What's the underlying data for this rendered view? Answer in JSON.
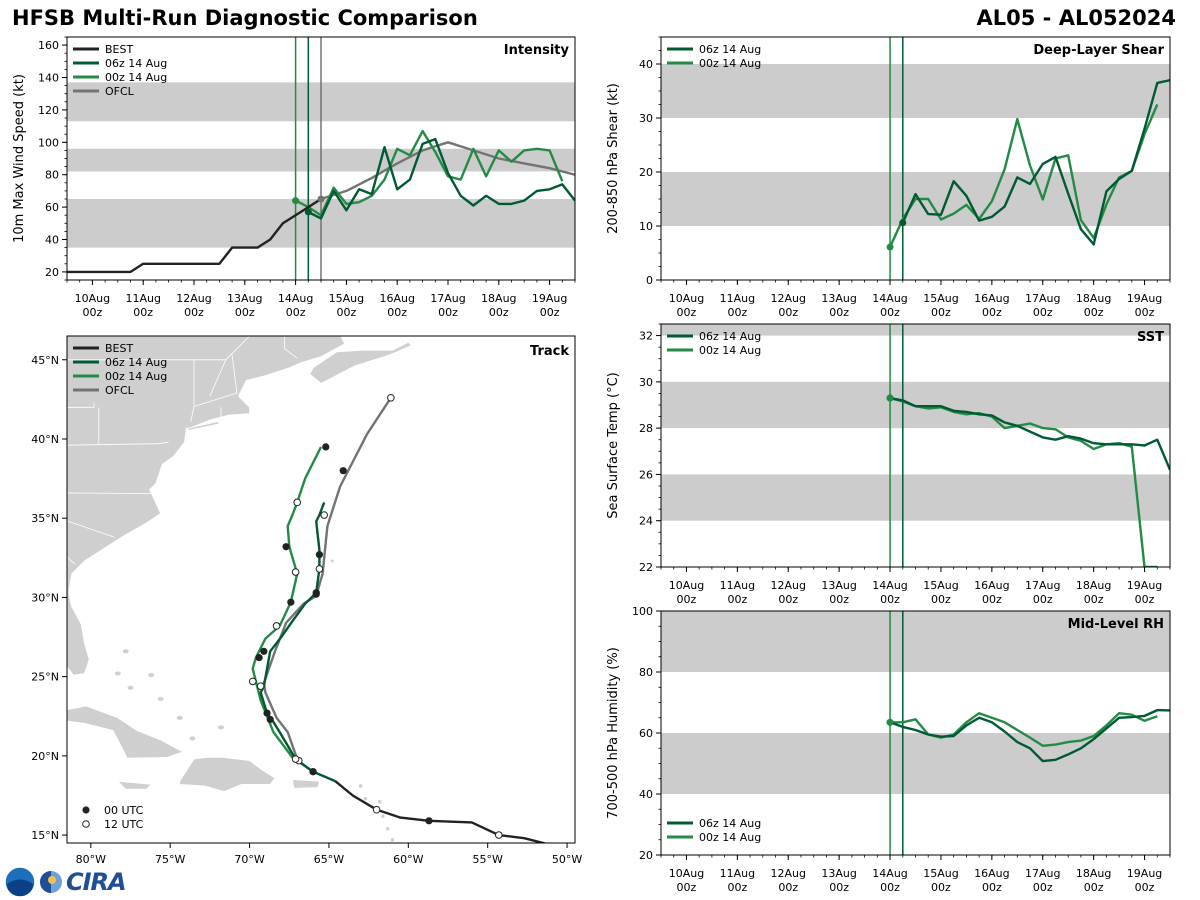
{
  "header": {
    "title": "HFSB Multi-Run Diagnostic Comparison",
    "storm": "AL05 - AL052024"
  },
  "colors": {
    "best": "#222222",
    "run06": "#005a32",
    "run00": "#238b45",
    "ofcl": "#737373",
    "band": "#cccccc",
    "land": "#cfcfcf"
  },
  "logo": {
    "text": "CIRA"
  },
  "time_ticks": [
    {
      "line1": "10Aug",
      "line2": "00z"
    },
    {
      "line1": "11Aug",
      "line2": "00z"
    },
    {
      "line1": "12Aug",
      "line2": "00z"
    },
    {
      "line1": "13Aug",
      "line2": "00z"
    },
    {
      "line1": "14Aug",
      "line2": "00z"
    },
    {
      "line1": "15Aug",
      "line2": "00z"
    },
    {
      "line1": "16Aug",
      "line2": "00z"
    },
    {
      "line1": "17Aug",
      "line2": "00z"
    },
    {
      "line1": "18Aug",
      "line2": "00z"
    },
    {
      "line1": "19Aug",
      "line2": "00z"
    }
  ],
  "chart_data": [
    {
      "id": "intensity",
      "type": "line",
      "title": "Intensity",
      "xlabel": "",
      "ylabel": "10m Max Wind Speed (kt)",
      "xlim": [
        -0.5,
        9.5
      ],
      "ylim": [
        15,
        165
      ],
      "yticks": [
        "20",
        "40",
        "60",
        "80",
        "100",
        "120",
        "140",
        "160"
      ],
      "bands": [
        [
          35,
          65
        ],
        [
          82,
          96
        ],
        [
          113,
          137
        ]
      ],
      "vlines": [
        {
          "x": 4.0,
          "series": "00z 14 Aug"
        },
        {
          "x": 4.25,
          "series": "06z 14 Aug"
        },
        {
          "x": 4.5,
          "series": "OFCL"
        }
      ],
      "legend": [
        "BEST",
        "06z 14 Aug",
        "00z 14 Aug",
        "OFCL"
      ],
      "legend_loc": "top-left",
      "series": [
        {
          "name": "BEST",
          "x": [
            -0.5,
            0,
            0.25,
            0.5,
            0.75,
            1.0,
            1.25,
            1.5,
            1.75,
            2.0,
            2.25,
            2.5,
            2.75,
            3.0,
            3.25,
            3.5,
            3.75,
            4.0,
            4.25,
            4.5
          ],
          "y": [
            20,
            20,
            20,
            20,
            20,
            25,
            25,
            25,
            25,
            25,
            25,
            25,
            35,
            35,
            35,
            40,
            50,
            55,
            60,
            65
          ]
        },
        {
          "name": "06z 14 Aug",
          "x": [
            4.25,
            4.5,
            4.75,
            5.0,
            5.25,
            5.5,
            5.75,
            6.0,
            6.25,
            6.5,
            6.75,
            7.0,
            7.25,
            7.5,
            7.75,
            8.0,
            8.25,
            8.5,
            8.75,
            9.0,
            9.25,
            9.5
          ],
          "y": [
            57,
            53,
            70,
            58,
            71,
            68,
            97,
            71,
            77,
            99,
            102,
            81,
            67,
            61,
            67,
            62,
            62,
            64,
            70,
            71,
            74,
            64
          ]
        },
        {
          "name": "00z 14 Aug",
          "x": [
            4.0,
            4.25,
            4.5,
            4.75,
            5.0,
            5.25,
            5.5,
            5.75,
            6.0,
            6.25,
            6.5,
            6.75,
            7.0,
            7.25,
            7.5,
            7.75,
            8.0,
            8.25,
            8.5,
            8.75,
            9.0,
            9.25
          ],
          "y": [
            64,
            60,
            55,
            72,
            62,
            63,
            67,
            77,
            96,
            92,
            107,
            94,
            79,
            77,
            96,
            79,
            95,
            88,
            95,
            96,
            95,
            76
          ]
        },
        {
          "name": "OFCL",
          "x": [
            4.5,
            5.0,
            5.5,
            6.0,
            6.5,
            7.0,
            7.5,
            8.0,
            8.5,
            9.0,
            9.5
          ],
          "y": [
            65,
            70,
            78,
            87,
            95,
            100,
            95,
            90,
            87,
            84,
            80
          ]
        }
      ]
    },
    {
      "id": "shear",
      "type": "line",
      "title": "Deep-Layer Shear",
      "xlabel": "",
      "ylabel": "200-850 hPa Shear (kt)",
      "xlim": [
        -0.5,
        9.5
      ],
      "ylim": [
        0,
        45
      ],
      "yticks": [
        "0",
        "10",
        "20",
        "30",
        "40"
      ],
      "bands": [
        [
          10,
          20
        ],
        [
          30,
          40
        ]
      ],
      "vlines": [
        {
          "x": 4.0,
          "series": "00z 14 Aug"
        },
        {
          "x": 4.25,
          "series": "06z 14 Aug"
        }
      ],
      "legend": [
        "06z 14 Aug",
        "00z 14 Aug"
      ],
      "legend_loc": "top-left",
      "series": [
        {
          "name": "06z 14 Aug",
          "x": [
            4.25,
            4.5,
            4.75,
            5.0,
            5.25,
            5.5,
            5.75,
            6.0,
            6.25,
            6.5,
            6.75,
            7.0,
            7.25,
            7.5,
            7.75,
            8.0,
            8.25,
            8.5,
            8.75,
            9.0,
            9.25,
            9.5
          ],
          "y": [
            10.6,
            15.9,
            12.2,
            12.1,
            18.3,
            15.6,
            11.0,
            11.7,
            13.6,
            19.0,
            17.8,
            21.5,
            22.8,
            16.0,
            9.4,
            6.6,
            16.4,
            18.7,
            20.2,
            28.0,
            36.5,
            37.0
          ]
        },
        {
          "name": "00z 14 Aug",
          "x": [
            4.0,
            4.25,
            4.5,
            4.75,
            5.0,
            5.25,
            5.5,
            5.75,
            6.0,
            6.25,
            6.5,
            6.75,
            7.0,
            7.25,
            7.5,
            7.75,
            8.0,
            8.25,
            8.5,
            8.75,
            9.0,
            9.25
          ],
          "y": [
            6.1,
            11.3,
            15.0,
            15.0,
            11.2,
            12.3,
            13.9,
            11.3,
            14.6,
            20.5,
            29.8,
            21.2,
            14.9,
            22.5,
            23.1,
            11.1,
            7.8,
            14.0,
            19.0,
            20.2,
            27.0,
            32.5
          ]
        }
      ]
    },
    {
      "id": "track",
      "type": "scatter",
      "title": "Track",
      "xlabel": "",
      "ylabel": "",
      "xlim": [
        -81.5,
        -49.5
      ],
      "ylim": [
        14.5,
        46.5
      ],
      "xticks": [
        {
          "v": -80,
          "label": "80°W"
        },
        {
          "v": -75,
          "label": "75°W"
        },
        {
          "v": -70,
          "label": "70°W"
        },
        {
          "v": -65,
          "label": "65°W"
        },
        {
          "v": -60,
          "label": "60°W"
        },
        {
          "v": -55,
          "label": "55°W"
        },
        {
          "v": -50,
          "label": "50°W"
        }
      ],
      "yticks": [
        {
          "v": 15,
          "label": "15°N"
        },
        {
          "v": 20,
          "label": "20°N"
        },
        {
          "v": 25,
          "label": "25°N"
        },
        {
          "v": 30,
          "label": "30°N"
        },
        {
          "v": 35,
          "label": "35°N"
        },
        {
          "v": 40,
          "label": "40°N"
        },
        {
          "v": 45,
          "label": "45°N"
        }
      ],
      "legend": [
        "BEST",
        "06z 14 Aug",
        "00z 14 Aug",
        "OFCL"
      ],
      "legend_loc": "top-left",
      "marker_legend": [
        "00 UTC",
        "12 UTC"
      ],
      "marker_legend_loc": "bottom-left",
      "series": [
        {
          "name": "BEST",
          "lon": [
            -50.5,
            -51.5,
            -52.7,
            -54.3,
            -56.0,
            -58.7,
            -60.5,
            -62.0,
            -63.5,
            -64.6
          ],
          "lat": [
            14.2,
            14.5,
            14.8,
            15.0,
            15.8,
            15.9,
            16.1,
            16.6,
            17.5,
            18.4
          ],
          "m00_lon": [
            -58.7
          ],
          "m00_lat": [
            15.9
          ],
          "m12_lon": [
            -54.3,
            -62.0
          ],
          "m12_lat": [
            15.0,
            16.6
          ]
        },
        {
          "name": "06z 14 Aug",
          "lon": [
            -64.6,
            -66.0,
            -67.1,
            -68.1,
            -68.6,
            -68.9,
            -69.3,
            -69.1,
            -68.7,
            -68.0,
            -67.3,
            -66.5,
            -65.8,
            -65.6,
            -65.6,
            -65.8,
            -65.6,
            -65.3
          ],
          "lat": [
            18.4,
            19.0,
            19.8,
            21.5,
            22.3,
            22.7,
            24.0,
            24.4,
            26.6,
            27.5,
            28.5,
            29.6,
            30.3,
            31.8,
            33.0,
            34.8,
            35.2,
            36.0
          ],
          "m00_lon": [
            -66.0,
            -68.7,
            -68.9,
            -69.1,
            -65.8,
            -65.6
          ],
          "m00_lat": [
            19.0,
            22.3,
            22.7,
            26.6,
            30.3,
            32.7
          ],
          "m12_lon": [
            -67.1,
            -69.3,
            -65.6,
            -65.3
          ],
          "m12_lat": [
            19.8,
            24.4,
            31.8,
            35.2
          ]
        },
        {
          "name": "00z 14 Aug",
          "lon": [
            -64.6,
            -66.0,
            -67.3,
            -68.5,
            -69.3,
            -69.8,
            -69.6,
            -69.0,
            -68.1,
            -67.4,
            -67.0,
            -67.5,
            -67.6,
            -67.3,
            -67.0,
            -66.5,
            -65.5
          ],
          "lat": [
            18.4,
            19.0,
            19.9,
            21.5,
            23.5,
            25.5,
            26.2,
            27.4,
            28.2,
            29.7,
            31.5,
            33.2,
            34.5,
            35.2,
            36.0,
            37.5,
            39.5
          ],
          "m00_lon": [
            -66.0,
            -69.4,
            -67.4,
            -67.7,
            -65.2
          ],
          "m00_lat": [
            19.0,
            26.2,
            29.7,
            33.2,
            39.5
          ],
          "m12_lon": [
            -69.8,
            -68.3,
            -67.1,
            -67.0
          ],
          "m12_lat": [
            24.7,
            28.2,
            31.6,
            36.0
          ]
        },
        {
          "name": "OFCL",
          "lon": [
            -67.0,
            -67.6,
            -68.3,
            -69.0,
            -69.1,
            -68.4,
            -67.7,
            -66.6,
            -65.8,
            -65.4,
            -65.1,
            -64.3,
            -62.6,
            -61.1
          ],
          "lat": [
            19.8,
            21.5,
            22.4,
            24.0,
            24.6,
            26.6,
            28.4,
            29.6,
            30.1,
            31.5,
            34.5,
            37.0,
            40.3,
            42.6
          ],
          "m00_lon": [
            -65.8,
            -64.1
          ],
          "m00_lat": [
            30.2,
            38.0
          ],
          "m12_lon": [
            -66.9,
            -61.1
          ],
          "m12_lat": [
            19.7,
            42.6
          ]
        }
      ]
    },
    {
      "id": "sst",
      "type": "line",
      "title": "SST",
      "xlabel": "",
      "ylabel": "Sea Surface Temp (°C)",
      "xlim": [
        -0.5,
        9.5
      ],
      "ylim": [
        22,
        32.5
      ],
      "yticks": [
        "22",
        "24",
        "26",
        "28",
        "30",
        "32"
      ],
      "bands": [
        [
          24,
          26
        ],
        [
          28,
          30
        ],
        [
          32,
          32.5
        ]
      ],
      "vlines": [
        {
          "x": 4.0,
          "series": "00z 14 Aug"
        },
        {
          "x": 4.25,
          "series": "06z 14 Aug"
        }
      ],
      "legend": [
        "06z 14 Aug",
        "00z 14 Aug"
      ],
      "legend_loc": "top-left",
      "series": [
        {
          "name": "06z 14 Aug",
          "x": [
            4.0,
            4.25,
            4.5,
            4.75,
            5.0,
            5.25,
            5.5,
            5.75,
            6.0,
            6.25,
            6.5,
            6.75,
            7.0,
            7.25,
            7.5,
            7.75,
            8.0,
            8.25,
            8.5,
            8.75,
            9.0,
            9.25,
            9.5
          ],
          "y": [
            29.3,
            29.2,
            28.95,
            28.95,
            28.95,
            28.75,
            28.7,
            28.6,
            28.55,
            28.25,
            28.1,
            27.85,
            27.6,
            27.5,
            27.65,
            27.55,
            27.35,
            27.3,
            27.3,
            27.3,
            27.25,
            27.5,
            26.2
          ]
        },
        {
          "name": "00z 14 Aug",
          "x": [
            4.0,
            4.25,
            4.5,
            4.75,
            5.0,
            5.25,
            5.5,
            5.75,
            6.0,
            6.25,
            6.5,
            6.75,
            7.0,
            7.25,
            7.5,
            7.75,
            8.0,
            8.25,
            8.5,
            8.75,
            9.0,
            9.25
          ],
          "y": [
            29.3,
            29.15,
            28.95,
            28.85,
            28.9,
            28.7,
            28.6,
            28.65,
            28.5,
            28.0,
            28.1,
            28.2,
            28.0,
            27.95,
            27.6,
            27.45,
            27.1,
            27.3,
            27.35,
            27.2,
            22.0,
            22.0
          ]
        }
      ]
    },
    {
      "id": "rh",
      "type": "line",
      "title": "Mid-Level RH",
      "xlabel": "",
      "ylabel": "700-500 hPa Humidity (%)",
      "xlim": [
        -0.5,
        9.5
      ],
      "ylim": [
        20,
        100
      ],
      "yticks": [
        "20",
        "40",
        "60",
        "80",
        "100"
      ],
      "bands": [
        [
          40,
          60
        ],
        [
          80,
          100
        ]
      ],
      "vlines": [
        {
          "x": 4.0,
          "series": "00z 14 Aug"
        },
        {
          "x": 4.25,
          "series": "06z 14 Aug"
        }
      ],
      "legend": [
        "06z 14 Aug",
        "00z 14 Aug"
      ],
      "legend_loc": "bottom-left",
      "series": [
        {
          "name": "06z 14 Aug",
          "x": [
            4.0,
            4.25,
            4.5,
            4.75,
            5.0,
            5.25,
            5.5,
            5.75,
            6.0,
            6.25,
            6.5,
            6.75,
            7.0,
            7.25,
            7.5,
            7.75,
            8.0,
            8.25,
            8.5,
            8.75,
            9.0,
            9.25,
            9.5
          ],
          "y": [
            63.5,
            62,
            61,
            59.5,
            58.8,
            59,
            62.5,
            65,
            63.5,
            60.5,
            57,
            55,
            50.8,
            51.2,
            53,
            55,
            58,
            61.5,
            65,
            65.2,
            65.6,
            67.5,
            67.4
          ]
        },
        {
          "name": "00z 14 Aug",
          "x": [
            4.0,
            4.25,
            4.5,
            4.75,
            5.0,
            5.25,
            5.5,
            5.75,
            6.0,
            6.25,
            6.5,
            6.75,
            7.0,
            7.25,
            7.5,
            7.75,
            8.0,
            8.25,
            8.5,
            8.75,
            9.0,
            9.25
          ],
          "y": [
            63.5,
            63.5,
            64.5,
            59.5,
            58.5,
            59.5,
            63.5,
            66.5,
            65,
            63.5,
            61,
            58.5,
            55.8,
            56.2,
            57,
            57.5,
            59,
            62.5,
            66.5,
            66,
            64,
            65.5
          ]
        }
      ]
    }
  ]
}
